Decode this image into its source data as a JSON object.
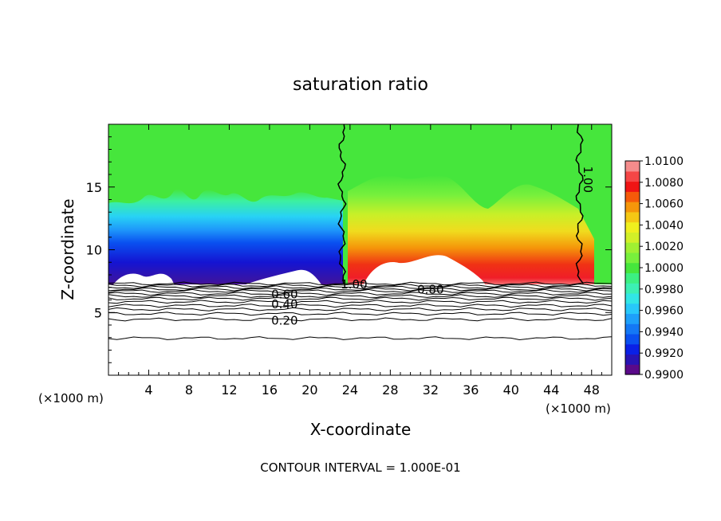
{
  "chart_data": {
    "type": "heatmap",
    "title": "saturation ratio",
    "xlabel": "X-coordinate",
    "ylabel": "Z-coordinate",
    "x_unit_label_left": "(×1000 m)",
    "x_unit_label_right": "(×1000 m)",
    "footer": "CONTOUR INTERVAL = 1.000E-01",
    "xlim": [
      0,
      50
    ],
    "ylim": [
      0,
      20
    ],
    "x_ticks": [
      4,
      8,
      12,
      16,
      20,
      24,
      28,
      32,
      36,
      40,
      44,
      48
    ],
    "x_tick_labels": [
      "4",
      "8",
      "12",
      "16",
      "20",
      "24",
      "28",
      "32",
      "36",
      "40",
      "44",
      "48"
    ],
    "y_ticks": [
      5,
      10,
      15
    ],
    "y_tick_labels": [
      "5",
      "10",
      "15"
    ],
    "colorbar": {
      "levels": [
        0.99,
        0.991,
        0.992,
        0.993,
        0.994,
        0.995,
        0.996,
        0.997,
        0.998,
        0.999,
        1.0,
        1.001,
        1.002,
        1.003,
        1.004,
        1.005,
        1.006,
        1.007,
        1.008,
        1.009,
        1.01
      ],
      "labels": [
        "0.9900",
        "0.9920",
        "0.9940",
        "0.9960",
        "0.9980",
        "1.0000",
        "1.0020",
        "1.0040",
        "1.0060",
        "1.0080",
        "1.0100"
      ],
      "colors": [
        "#5a0a8a",
        "#2814b4",
        "#0a20e6",
        "#0a50f0",
        "#1478f5",
        "#1ea0fa",
        "#28c8fa",
        "#32e6e6",
        "#3cf0b4",
        "#3cf082",
        "#46e63c",
        "#78f03c",
        "#a0f032",
        "#d2f028",
        "#f0f01e",
        "#f5c814",
        "#f5960a",
        "#f55a0a",
        "#f01414",
        "#f54646",
        "#f58c8c"
      ]
    },
    "contour_labels": [
      {
        "text": "1.00",
        "x": 24.4,
        "z": 7.3
      },
      {
        "text": "1.00",
        "x": 47.7,
        "z": 15.6
      },
      {
        "text": "0.80",
        "x": 32.0,
        "z": 6.9
      },
      {
        "text": "0.60",
        "x": 17.5,
        "z": 6.5
      },
      {
        "text": "0.40",
        "x": 17.5,
        "z": 5.7
      },
      {
        "text": "0.20",
        "x": 17.5,
        "z": 4.4
      }
    ],
    "contour_lines_z": [
      7.3,
      7.15,
      7.0,
      6.85,
      6.7,
      6.5,
      6.3,
      6.1,
      5.85,
      5.55,
      5.25,
      4.9,
      4.45,
      2.95
    ],
    "saturation_boundaries_x": [
      23.2,
      46.8
    ],
    "cloud_base_z": 7.3
  }
}
